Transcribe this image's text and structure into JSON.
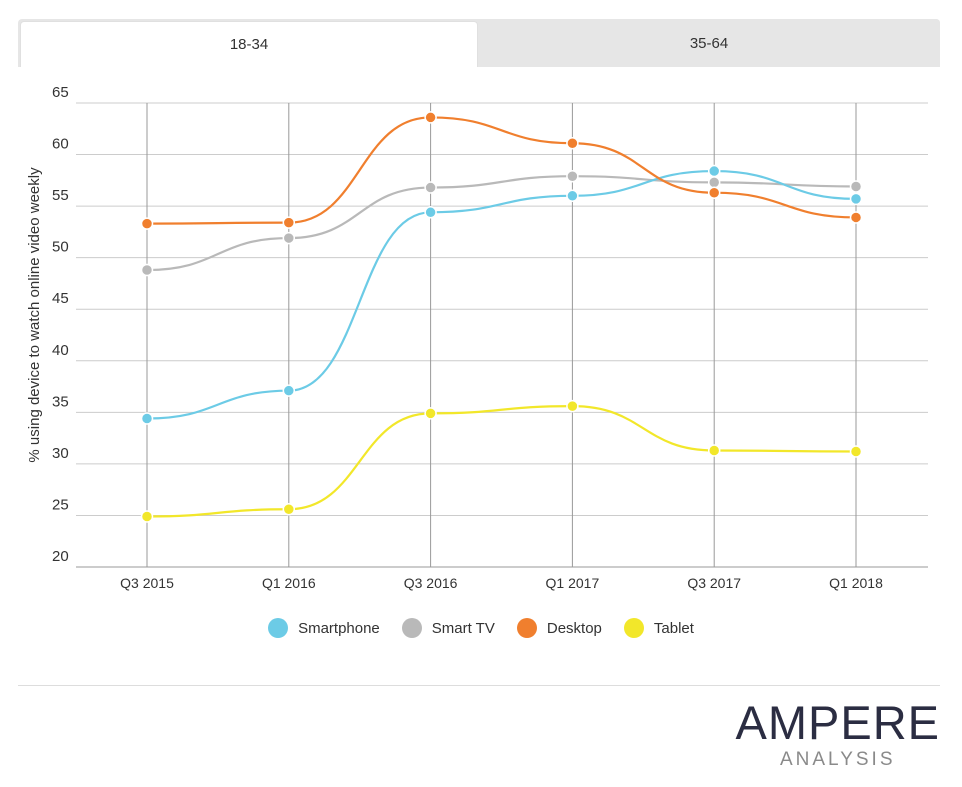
{
  "tabs": [
    {
      "label": "18-34",
      "active": true
    },
    {
      "label": "35-64",
      "active": false
    }
  ],
  "chart_data": {
    "type": "line",
    "categories": [
      "Q3 2015",
      "Q1 2016",
      "Q3 2016",
      "Q1 2017",
      "Q3 2017",
      "Q1 2018"
    ],
    "ylabel": "% using device to watch online video weekly",
    "xlabel": "",
    "ylim": [
      20,
      65
    ],
    "yticks": [
      20,
      25,
      30,
      35,
      40,
      45,
      50,
      55,
      60,
      65
    ],
    "grid": true,
    "legend_position": "bottom",
    "series": [
      {
        "name": "Smartphone",
        "color": "#6ccbe6",
        "values": [
          34.4,
          37.1,
          54.4,
          56.0,
          58.4,
          55.7
        ]
      },
      {
        "name": "Smart TV",
        "color": "#b9b9b9",
        "values": [
          48.8,
          51.9,
          56.8,
          57.9,
          57.3,
          56.9
        ]
      },
      {
        "name": "Desktop",
        "color": "#f07f2e",
        "values": [
          53.3,
          53.4,
          63.6,
          61.1,
          56.3,
          53.9
        ]
      },
      {
        "name": "Tablet",
        "color": "#f2e72a",
        "values": [
          24.9,
          25.6,
          34.9,
          35.6,
          31.3,
          31.2
        ]
      }
    ]
  },
  "logo": {
    "main": "AMPERE",
    "sub": "ANALYSIS"
  }
}
